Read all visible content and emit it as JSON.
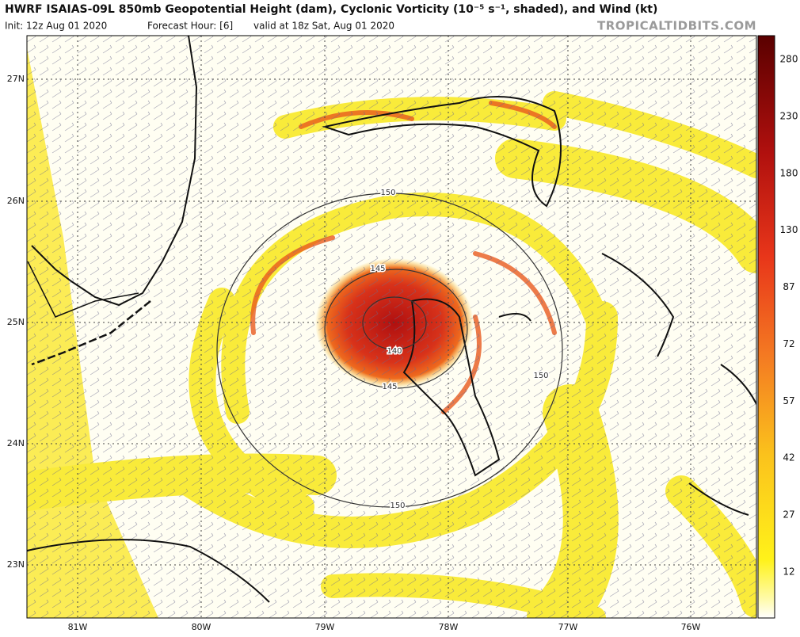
{
  "header": {
    "title": "HWRF ISAIAS-09L 850mb Geopotential Height (dam), Cyclonic Vorticity (10⁻⁵ s⁻¹, shaded), and Wind (kt)",
    "init": "Init: 12z Aug 01 2020",
    "forecast_hour": "Forecast Hour: [6]",
    "valid": "valid at 18z Sat, Aug 01 2020",
    "site": "TROPICALTIDBITS.COM"
  },
  "map": {
    "lat_labels": [
      "27N",
      "26N",
      "25N",
      "24N",
      "23N"
    ],
    "lon_labels": [
      "81W",
      "80W",
      "79W",
      "78W",
      "77W",
      "76W"
    ],
    "contour_labels": [
      "150",
      "145",
      "140",
      "145",
      "150",
      "150"
    ]
  },
  "colorbar": {
    "labels": [
      "280",
      "230",
      "180",
      "130",
      "87",
      "72",
      "57",
      "42",
      "27",
      "12"
    ]
  }
}
